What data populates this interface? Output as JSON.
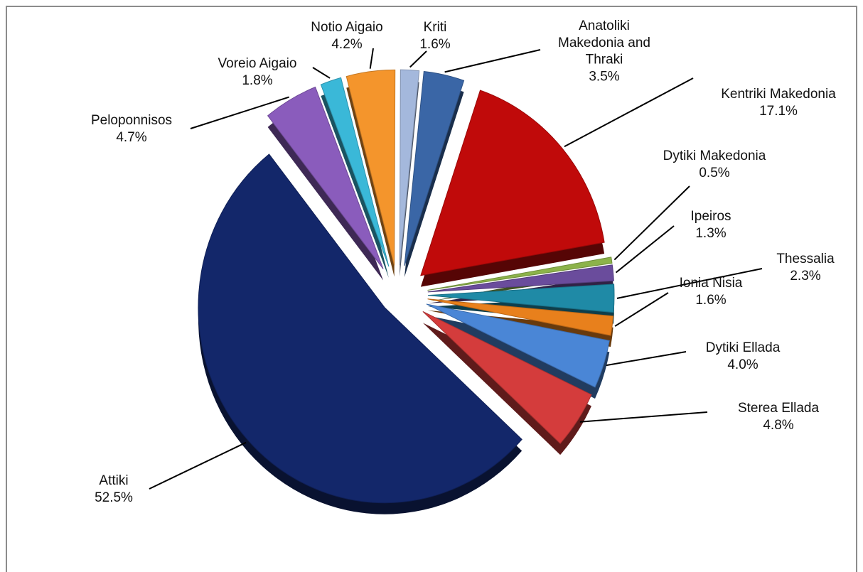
{
  "chart_data": {
    "type": "pie",
    "style": "exploded 3d",
    "legend": "none",
    "slices": [
      {
        "name": "Anatoliki Makedonia and Thraki",
        "label_lines": [
          "Anatoliki",
          "Makedonia and",
          "Thraki"
        ],
        "value": 3.5,
        "value_label": "3.5%",
        "color": "#3a66a6"
      },
      {
        "name": "Kentriki Makedonia",
        "label_lines": [
          "Kentriki Makedonia"
        ],
        "value": 17.1,
        "value_label": "17.1%",
        "color": "#c00a0a"
      },
      {
        "name": "Dytiki Makedonia",
        "label_lines": [
          "Dytiki Makedonia"
        ],
        "value": 0.5,
        "value_label": "0.5%",
        "color": "#8cb34a"
      },
      {
        "name": "Ipeiros",
        "label_lines": [
          "Ipeiros"
        ],
        "value": 1.3,
        "value_label": "1.3%",
        "color": "#6a4c9c"
      },
      {
        "name": "Thessalia",
        "label_lines": [
          "Thessalia"
        ],
        "value": 2.3,
        "value_label": "2.3%",
        "color": "#1f8aa6"
      },
      {
        "name": "Ionia Nisia",
        "label_lines": [
          "Ionia Nisia"
        ],
        "value": 1.6,
        "value_label": "1.6%",
        "color": "#e8801c"
      },
      {
        "name": "Dytiki Ellada",
        "label_lines": [
          "Dytiki Ellada"
        ],
        "value": 4.0,
        "value_label": "4.0%",
        "color": "#4a86d6"
      },
      {
        "name": "Sterea Ellada",
        "label_lines": [
          "Sterea Ellada"
        ],
        "value": 4.8,
        "value_label": "4.8%",
        "color": "#d43c3c"
      },
      {
        "name": "Attiki",
        "label_lines": [
          "Attiki"
        ],
        "value": 52.5,
        "value_label": "52.5%",
        "color": "#13276a"
      },
      {
        "name": "Peloponnisos",
        "label_lines": [
          "Peloponnisos"
        ],
        "value": 4.7,
        "value_label": "4.7%",
        "color": "#8a5cbc"
      },
      {
        "name": "Voreio Aigaio",
        "label_lines": [
          "Voreio Aigaio"
        ],
        "value": 1.8,
        "value_label": "1.8%",
        "color": "#3ab8d8"
      },
      {
        "name": "Notio Aigaio",
        "label_lines": [
          "Notio Aigaio"
        ],
        "value": 4.2,
        "value_label": "4.2%",
        "color": "#f4952c"
      },
      {
        "name": "Kriti",
        "label_lines": [
          "Kriti"
        ],
        "value": 1.6,
        "value_label": "1.6%",
        "color": "#a4b8dc"
      }
    ]
  }
}
